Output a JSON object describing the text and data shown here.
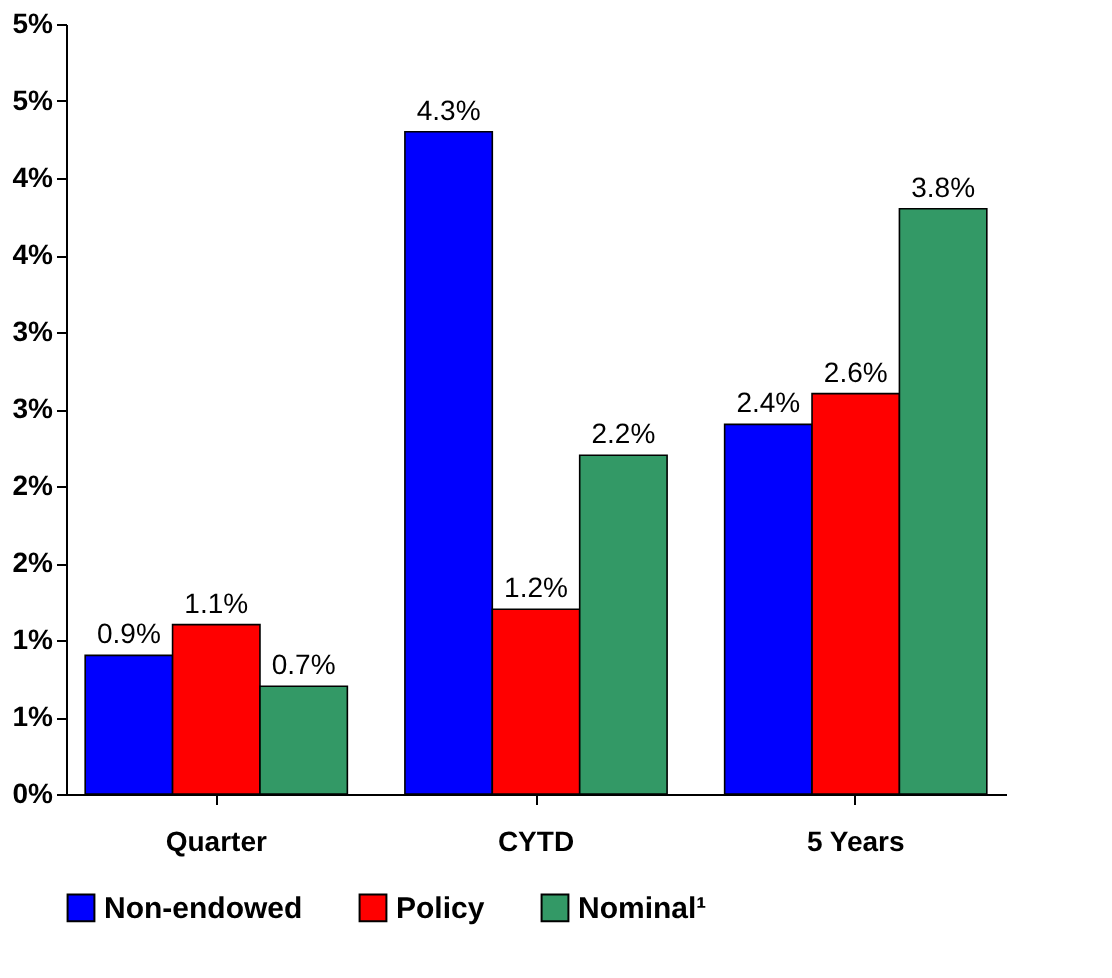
{
  "chart_data": {
    "type": "bar",
    "categories": [
      "Quarter",
      "CYTD",
      "5 Years"
    ],
    "series": [
      {
        "name": "Non-endowed",
        "color": "#0000ff",
        "values": [
          0.9,
          4.3,
          2.4
        ],
        "value_labels": [
          "0.9%",
          "4.3%",
          "2.4%"
        ]
      },
      {
        "name": "Policy",
        "color": "#ff0000",
        "values": [
          1.1,
          1.2,
          2.6
        ],
        "value_labels": [
          "1.1%",
          "1.2%",
          "2.6%"
        ]
      },
      {
        "name": "Nominal¹",
        "color": "#339966",
        "values": [
          0.7,
          2.2,
          3.8
        ],
        "value_labels": [
          "0.7%",
          "2.2%",
          "3.8%"
        ]
      }
    ],
    "ylim": [
      0,
      5
    ],
    "yticks": [
      {
        "value": 0,
        "label": "0%"
      },
      {
        "value": 0.5,
        "label": "1%"
      },
      {
        "value": 1,
        "label": "1%"
      },
      {
        "value": 1.5,
        "label": "2%"
      },
      {
        "value": 2,
        "label": "2%"
      },
      {
        "value": 2.5,
        "label": "3%"
      },
      {
        "value": 3,
        "label": "3%"
      },
      {
        "value": 3.5,
        "label": "4%"
      },
      {
        "value": 4,
        "label": "4%"
      },
      {
        "value": 4.5,
        "label": "5%"
      },
      {
        "value": 5,
        "label": "5%"
      }
    ],
    "grid": false,
    "legend": "bottom"
  }
}
